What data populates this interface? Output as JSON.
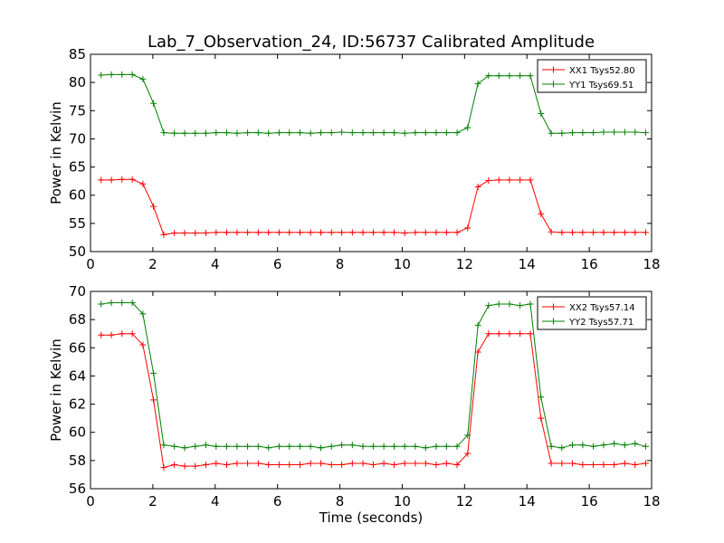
{
  "chart_data": {
    "title": "Lab_7_Observation_24, ID:56737 Calibrated Amplitude",
    "xlabel": "Time (seconds)",
    "panels": [
      {
        "type": "line",
        "ylabel": "Power in Kelvin",
        "xlim": [
          0,
          18
        ],
        "ylim": [
          50,
          85
        ],
        "xticks": [
          "0",
          "2",
          "4",
          "6",
          "8",
          "10",
          "12",
          "14",
          "16",
          "18"
        ],
        "yticks": [
          "50",
          "55",
          "60",
          "65",
          "70",
          "75",
          "80",
          "85"
        ],
        "legend_position": "top-right",
        "grid": false,
        "x": [
          0.34,
          0.67,
          1.01,
          1.34,
          1.68,
          2.02,
          2.35,
          2.69,
          3.02,
          3.36,
          3.7,
          4.03,
          4.37,
          4.7,
          5.04,
          5.38,
          5.71,
          6.05,
          6.38,
          6.72,
          7.06,
          7.39,
          7.73,
          8.06,
          8.4,
          8.74,
          9.07,
          9.41,
          9.74,
          10.08,
          10.42,
          10.75,
          11.09,
          11.42,
          11.76,
          12.1,
          12.43,
          12.77,
          13.1,
          13.44,
          13.78,
          14.11,
          14.45,
          14.78,
          15.12,
          15.46,
          15.79,
          16.13,
          16.46,
          16.8,
          17.14,
          17.47,
          17.81
        ],
        "series": [
          {
            "name": "XX1 Tsys52.80",
            "color": "#ff0000",
            "values": [
              62.7,
              62.7,
              62.8,
              62.8,
              62.0,
              58.0,
              53.0,
              53.3,
              53.3,
              53.3,
              53.3,
              53.4,
              53.4,
              53.4,
              53.4,
              53.4,
              53.4,
              53.4,
              53.4,
              53.4,
              53.4,
              53.4,
              53.4,
              53.4,
              53.4,
              53.4,
              53.4,
              53.4,
              53.4,
              53.3,
              53.4,
              53.4,
              53.4,
              53.4,
              53.4,
              54.2,
              61.5,
              62.6,
              62.7,
              62.7,
              62.7,
              62.7,
              56.7,
              53.5,
              53.4,
              53.4,
              53.4,
              53.4,
              53.4,
              53.4,
              53.4,
              53.4,
              53.4
            ]
          },
          {
            "name": "YY1 Tsys69.51",
            "color": "#008000",
            "values": [
              81.3,
              81.4,
              81.4,
              81.4,
              80.6,
              76.3,
              71.1,
              71.0,
              71.0,
              71.0,
              71.0,
              71.1,
              71.1,
              71.0,
              71.1,
              71.1,
              71.0,
              71.1,
              71.1,
              71.1,
              71.0,
              71.1,
              71.1,
              71.2,
              71.1,
              71.1,
              71.1,
              71.1,
              71.1,
              71.0,
              71.1,
              71.1,
              71.1,
              71.1,
              71.1,
              72.0,
              79.8,
              81.2,
              81.2,
              81.2,
              81.2,
              81.2,
              74.5,
              71.0,
              71.0,
              71.1,
              71.1,
              71.1,
              71.2,
              71.2,
              71.2,
              71.2,
              71.1
            ]
          }
        ]
      },
      {
        "type": "line",
        "ylabel": "Power in Kelvin",
        "xlim": [
          0,
          18
        ],
        "ylim": [
          56,
          70
        ],
        "xticks": [
          "0",
          "2",
          "4",
          "6",
          "8",
          "10",
          "12",
          "14",
          "16",
          "18"
        ],
        "yticks": [
          "56",
          "58",
          "60",
          "62",
          "64",
          "66",
          "68",
          "70"
        ],
        "legend_position": "top-right",
        "grid": false,
        "x": [
          0.34,
          0.67,
          1.01,
          1.34,
          1.68,
          2.02,
          2.35,
          2.69,
          3.02,
          3.36,
          3.7,
          4.03,
          4.37,
          4.7,
          5.04,
          5.38,
          5.71,
          6.05,
          6.38,
          6.72,
          7.06,
          7.39,
          7.73,
          8.06,
          8.4,
          8.74,
          9.07,
          9.41,
          9.74,
          10.08,
          10.42,
          10.75,
          11.09,
          11.42,
          11.76,
          12.1,
          12.43,
          12.77,
          13.1,
          13.44,
          13.78,
          14.11,
          14.45,
          14.78,
          15.12,
          15.46,
          15.79,
          16.13,
          16.46,
          16.8,
          17.14,
          17.47,
          17.81
        ],
        "series": [
          {
            "name": "XX2 Tsys57.14",
            "color": "#ff0000",
            "values": [
              66.9,
              66.9,
              67.0,
              67.0,
              66.2,
              62.3,
              57.5,
              57.7,
              57.6,
              57.6,
              57.7,
              57.8,
              57.7,
              57.8,
              57.8,
              57.8,
              57.7,
              57.7,
              57.7,
              57.7,
              57.8,
              57.8,
              57.7,
              57.7,
              57.8,
              57.8,
              57.7,
              57.8,
              57.7,
              57.8,
              57.8,
              57.8,
              57.7,
              57.8,
              57.7,
              58.5,
              65.7,
              67.0,
              67.0,
              67.0,
              67.0,
              67.0,
              61.0,
              57.8,
              57.8,
              57.8,
              57.7,
              57.7,
              57.7,
              57.7,
              57.8,
              57.7,
              57.8
            ]
          },
          {
            "name": "YY2 Tsys57.71",
            "color": "#008000",
            "values": [
              69.1,
              69.2,
              69.2,
              69.2,
              68.4,
              64.2,
              59.1,
              59.0,
              58.9,
              59.0,
              59.1,
              59.0,
              59.0,
              59.0,
              59.0,
              59.0,
              58.9,
              59.0,
              59.0,
              59.0,
              59.0,
              58.9,
              59.0,
              59.1,
              59.1,
              59.0,
              59.0,
              59.0,
              59.0,
              59.0,
              59.0,
              58.9,
              59.0,
              59.0,
              59.0,
              59.8,
              67.6,
              69.0,
              69.1,
              69.1,
              69.0,
              69.1,
              62.5,
              59.0,
              58.9,
              59.1,
              59.1,
              59.0,
              59.1,
              59.2,
              59.1,
              59.2,
              59.0
            ]
          }
        ]
      }
    ]
  }
}
